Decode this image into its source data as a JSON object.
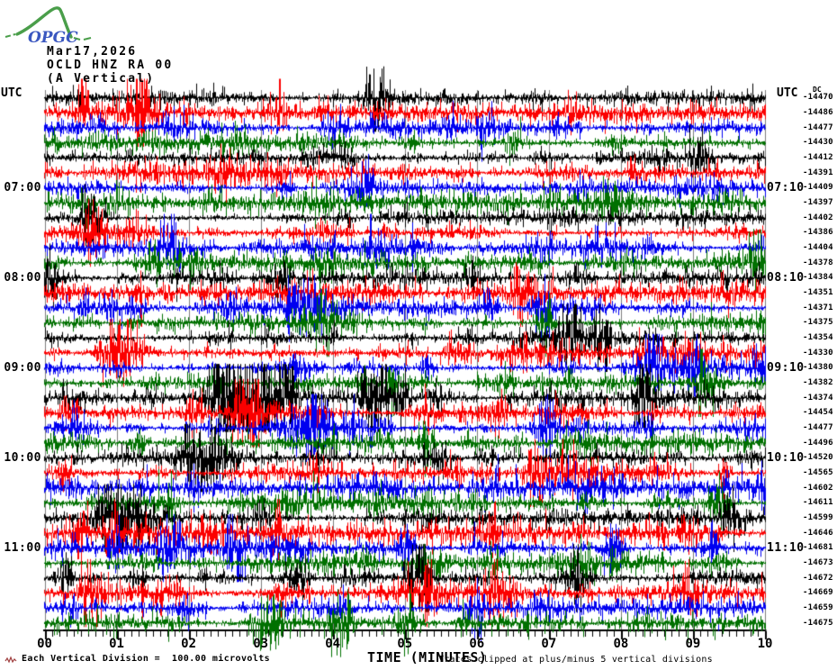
{
  "header": {
    "logo": "OPGC",
    "date": "Mar17,2026",
    "station": "OCLD HNZ RA 00",
    "component": "(A Vertical)",
    "utc_label_left": "UTC",
    "utc_label_right": "UTC",
    "dc_column_label": "DC"
  },
  "x_axis": {
    "title": "TIME (MINUTES)",
    "tick_labels": [
      "00",
      "01",
      "02",
      "03",
      "04",
      "05",
      "06",
      "07",
      "08",
      "09",
      "10"
    ],
    "minutes_per_line": 10
  },
  "footer": {
    "scale_note": "Each Vertical Division =  100.00 microvolts",
    "clip_note": "Traces clipped at plus/minus 5 vertical divisions"
  },
  "chart_data": {
    "type": "seismogram-helicorder",
    "station_code": "OCLD HNZ RA 00",
    "date": "Mar17,2026",
    "orientation": "(A Vertical)",
    "start_time_utc": "06:00",
    "end_time_utc": "12:00",
    "minutes_per_row": 10,
    "vertical_division_microvolts": 100.0,
    "clip_divisions": 5,
    "colors": {
      "black": "#000000",
      "red": "#fb0000",
      "blue": "#0000f0",
      "green": "#007000"
    },
    "grid": {
      "vertical_lines_every_minute": true,
      "color": "#7d7d7d"
    },
    "left_time_labels": [
      {
        "row": 6,
        "label": "07:00"
      },
      {
        "row": 12,
        "label": "08:00"
      },
      {
        "row": 18,
        "label": "09:00"
      },
      {
        "row": 24,
        "label": "10:00"
      },
      {
        "row": 30,
        "label": "11:00"
      }
    ],
    "right_time_labels": [
      {
        "row": 6,
        "label": "07:10"
      },
      {
        "row": 12,
        "label": "08:10"
      },
      {
        "row": 18,
        "label": "09:10"
      },
      {
        "row": 24,
        "label": "10:10"
      },
      {
        "row": 30,
        "label": "11:10"
      }
    ],
    "rows": [
      {
        "time": "06:00",
        "color": "black",
        "dc": -14470,
        "events": [
          [
            4.62,
            2.2,
            0.12
          ]
        ]
      },
      {
        "time": "06:10",
        "color": "red",
        "dc": -14486,
        "events": [
          [
            0.55,
            1.6,
            0.07
          ],
          [
            1.35,
            2.6,
            0.12
          ]
        ]
      },
      {
        "time": "06:20",
        "color": "blue",
        "dc": -14477,
        "events": [
          [
            6.1,
            1.0,
            0.08
          ]
        ]
      },
      {
        "time": "06:30",
        "color": "green",
        "dc": -14430,
        "events": []
      },
      {
        "time": "06:40",
        "color": "black",
        "dc": -14412,
        "events": []
      },
      {
        "time": "06:50",
        "color": "red",
        "dc": -14391,
        "events": [
          [
            5.0,
            0.8,
            0.08
          ]
        ]
      },
      {
        "time": "07:00",
        "color": "blue",
        "dc": -14409,
        "events": [
          [
            4.4,
            1.5,
            0.12
          ],
          [
            7.4,
            0.9,
            0.08
          ]
        ]
      },
      {
        "time": "07:10",
        "color": "green",
        "dc": -14397,
        "events": []
      },
      {
        "time": "07:20",
        "color": "black",
        "dc": -14402,
        "events": [
          [
            0.65,
            1.8,
            0.1
          ]
        ]
      },
      {
        "time": "07:30",
        "color": "red",
        "dc": -14386,
        "events": [
          [
            0.7,
            2.0,
            0.1
          ]
        ]
      },
      {
        "time": "07:40",
        "color": "blue",
        "dc": -14404,
        "events": [
          [
            1.75,
            2.0,
            0.1
          ],
          [
            4.55,
            1.6,
            0.1
          ]
        ]
      },
      {
        "time": "07:50",
        "color": "green",
        "dc": -14378,
        "events": [
          [
            9.9,
            1.8,
            0.08
          ]
        ]
      },
      {
        "time": "08:00",
        "color": "black",
        "dc": -14384,
        "events": [
          [
            0.05,
            2.8,
            0.07
          ],
          [
            3.3,
            0.8,
            0.06
          ]
        ]
      },
      {
        "time": "08:10",
        "color": "red",
        "dc": -14351,
        "events": [
          [
            1.35,
            1.5,
            0.06
          ],
          [
            6.6,
            1.6,
            0.1
          ]
        ]
      },
      {
        "time": "08:20",
        "color": "blue",
        "dc": -14371,
        "events": [
          [
            3.45,
            2.0,
            0.1
          ],
          [
            3.8,
            1.8,
            0.08
          ],
          [
            6.9,
            1.8,
            0.1
          ]
        ]
      },
      {
        "time": "08:30",
        "color": "green",
        "dc": -14375,
        "events": [
          [
            3.9,
            1.3,
            0.07
          ],
          [
            6.95,
            1.5,
            0.1
          ]
        ]
      },
      {
        "time": "08:40",
        "color": "black",
        "dc": -14354,
        "events": [
          [
            7.3,
            2.2,
            0.12
          ],
          [
            7.75,
            2.0,
            0.1
          ]
        ]
      },
      {
        "time": "08:50",
        "color": "red",
        "dc": -14330,
        "events": [
          [
            1.05,
            2.2,
            0.18
          ],
          [
            6.6,
            1.2,
            0.08
          ]
        ]
      },
      {
        "time": "09:00",
        "color": "blue",
        "dc": -14380,
        "events": [
          [
            3.5,
            1.0,
            0.1
          ],
          [
            8.45,
            2.2,
            0.12
          ],
          [
            9.0,
            1.4,
            0.1
          ]
        ]
      },
      {
        "time": "09:10",
        "color": "green",
        "dc": -14382,
        "events": [
          [
            4.85,
            2.5,
            0.05
          ],
          [
            9.15,
            2.0,
            0.1
          ]
        ]
      },
      {
        "time": "09:20",
        "color": "black",
        "dc": -14374,
        "events": [
          [
            2.5,
            4.5,
            0.15
          ],
          [
            2.8,
            4.5,
            0.12
          ],
          [
            3.05,
            3.5,
            0.1
          ],
          [
            3.35,
            3.0,
            0.08
          ],
          [
            4.6,
            3.5,
            0.12
          ],
          [
            4.95,
            2.0,
            0.08
          ],
          [
            8.35,
            2.6,
            0.12
          ]
        ]
      },
      {
        "time": "09:30",
        "color": "red",
        "dc": -14454,
        "events": [
          [
            0.35,
            1.2,
            0.08
          ],
          [
            2.85,
            3.2,
            0.15
          ],
          [
            5.3,
            1.0,
            0.1
          ]
        ]
      },
      {
        "time": "09:40",
        "color": "blue",
        "dc": -14477,
        "events": [
          [
            3.75,
            1.8,
            0.12
          ],
          [
            4.3,
            1.0,
            0.08
          ],
          [
            6.95,
            1.8,
            0.12
          ]
        ]
      },
      {
        "time": "09:50",
        "color": "green",
        "dc": -14496,
        "events": [
          [
            1.3,
            1.0,
            0.08
          ],
          [
            5.3,
            0.9,
            0.06
          ]
        ]
      },
      {
        "time": "10:00",
        "color": "black",
        "dc": -14520,
        "events": [
          [
            2.05,
            2.6,
            0.1
          ],
          [
            2.35,
            2.2,
            0.12
          ],
          [
            5.5,
            1.0,
            0.1
          ]
        ]
      },
      {
        "time": "10:10",
        "color": "red",
        "dc": -14565,
        "events": [
          [
            0.3,
            0.9,
            0.06
          ],
          [
            6.8,
            1.8,
            0.1
          ],
          [
            7.25,
            1.8,
            0.1
          ]
        ]
      },
      {
        "time": "10:20",
        "color": "blue",
        "dc": -14602,
        "events": [
          [
            2.1,
            1.2,
            0.06
          ],
          [
            4.8,
            1.0,
            0.08
          ]
        ]
      },
      {
        "time": "10:30",
        "color": "green",
        "dc": -14611,
        "events": [
          [
            1.75,
            1.5,
            0.08
          ],
          [
            4.6,
            1.2,
            0.08
          ],
          [
            9.35,
            1.8,
            0.1
          ]
        ]
      },
      {
        "time": "10:40",
        "color": "black",
        "dc": -14599,
        "events": [
          [
            0.9,
            2.4,
            0.12
          ],
          [
            1.25,
            1.8,
            0.1
          ],
          [
            9.5,
            1.2,
            0.1
          ]
        ]
      },
      {
        "time": "10:50",
        "color": "red",
        "dc": -14646,
        "events": [
          [
            0.5,
            1.6,
            0.08
          ],
          [
            0.95,
            1.4,
            0.08
          ],
          [
            8.9,
            1.0,
            0.08
          ]
        ]
      },
      {
        "time": "11:00",
        "color": "blue",
        "dc": -14681,
        "events": [
          [
            1.75,
            2.0,
            0.1
          ],
          [
            2.65,
            2.0,
            0.1
          ],
          [
            5.0,
            1.6,
            0.1
          ],
          [
            7.9,
            1.6,
            0.1
          ],
          [
            9.3,
            1.2,
            0.08
          ]
        ]
      },
      {
        "time": "11:10",
        "color": "green",
        "dc": -14673,
        "events": [
          [
            5.5,
            1.0,
            0.08
          ]
        ]
      },
      {
        "time": "11:20",
        "color": "black",
        "dc": -14672,
        "events": [
          [
            0.3,
            1.0,
            0.08
          ],
          [
            5.2,
            2.6,
            0.12
          ],
          [
            7.35,
            2.2,
            0.12
          ]
        ]
      },
      {
        "time": "11:30",
        "color": "red",
        "dc": -14669,
        "events": [
          [
            0.6,
            1.6,
            0.1
          ],
          [
            5.35,
            1.8,
            0.12
          ],
          [
            6.3,
            1.8,
            0.12
          ],
          [
            9.0,
            1.0,
            0.08
          ]
        ]
      },
      {
        "time": "11:40",
        "color": "blue",
        "dc": -14659,
        "events": [
          [
            0.35,
            1.0,
            0.08
          ],
          [
            6.0,
            0.9,
            0.08
          ]
        ]
      },
      {
        "time": "11:50",
        "color": "green",
        "dc": -14675,
        "events": [
          [
            3.1,
            2.2,
            0.12
          ],
          [
            4.1,
            2.2,
            0.12
          ],
          [
            5.05,
            1.2,
            0.1
          ]
        ]
      }
    ]
  }
}
